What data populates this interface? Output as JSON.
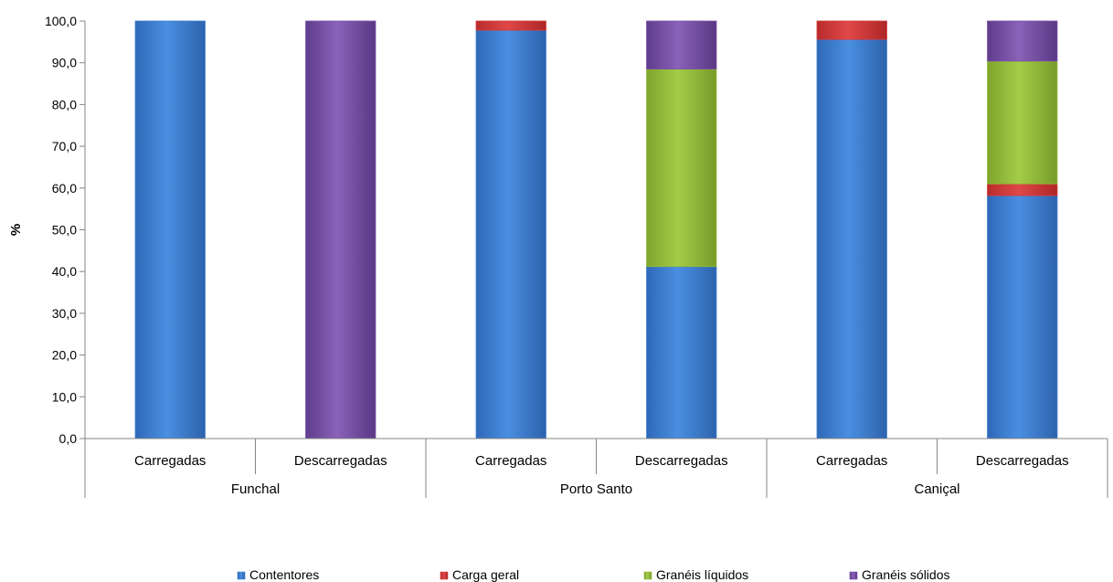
{
  "chart_data": {
    "type": "bar",
    "stacked": true,
    "ylabel": "%",
    "ylim": [
      0,
      100
    ],
    "yticks": [
      "0,0",
      "10,0",
      "20,0",
      "30,0",
      "40,0",
      "50,0",
      "60,0",
      "70,0",
      "80,0",
      "90,0",
      "100,0"
    ],
    "groups": [
      {
        "name": "Funchal",
        "categories": [
          "Carregadas",
          "Descarregadas"
        ]
      },
      {
        "name": "Porto Santo",
        "categories": [
          "Carregadas",
          "Descarregadas"
        ]
      },
      {
        "name": "Caniçal",
        "categories": [
          "Carregadas",
          "Descarregadas"
        ]
      }
    ],
    "series": [
      {
        "name": "Contentores",
        "color": "#3f7fd2",
        "values": [
          100.0,
          0.0,
          97.8,
          41.2,
          95.6,
          58.2
        ]
      },
      {
        "name": "Carga geral",
        "color": "#d63a3a",
        "values": [
          0.0,
          0.0,
          2.2,
          0.0,
          4.4,
          2.8
        ]
      },
      {
        "name": "Granéis líquidos",
        "color": "#93bb3c",
        "values": [
          0.0,
          0.0,
          0.0,
          47.3,
          0.0,
          29.4
        ]
      },
      {
        "name": "Granéis sólidos",
        "color": "#7a52a8",
        "values": [
          0.0,
          100.0,
          0.0,
          11.5,
          0.0,
          9.6
        ]
      }
    ],
    "grid": false,
    "legend_position": "bottom"
  }
}
